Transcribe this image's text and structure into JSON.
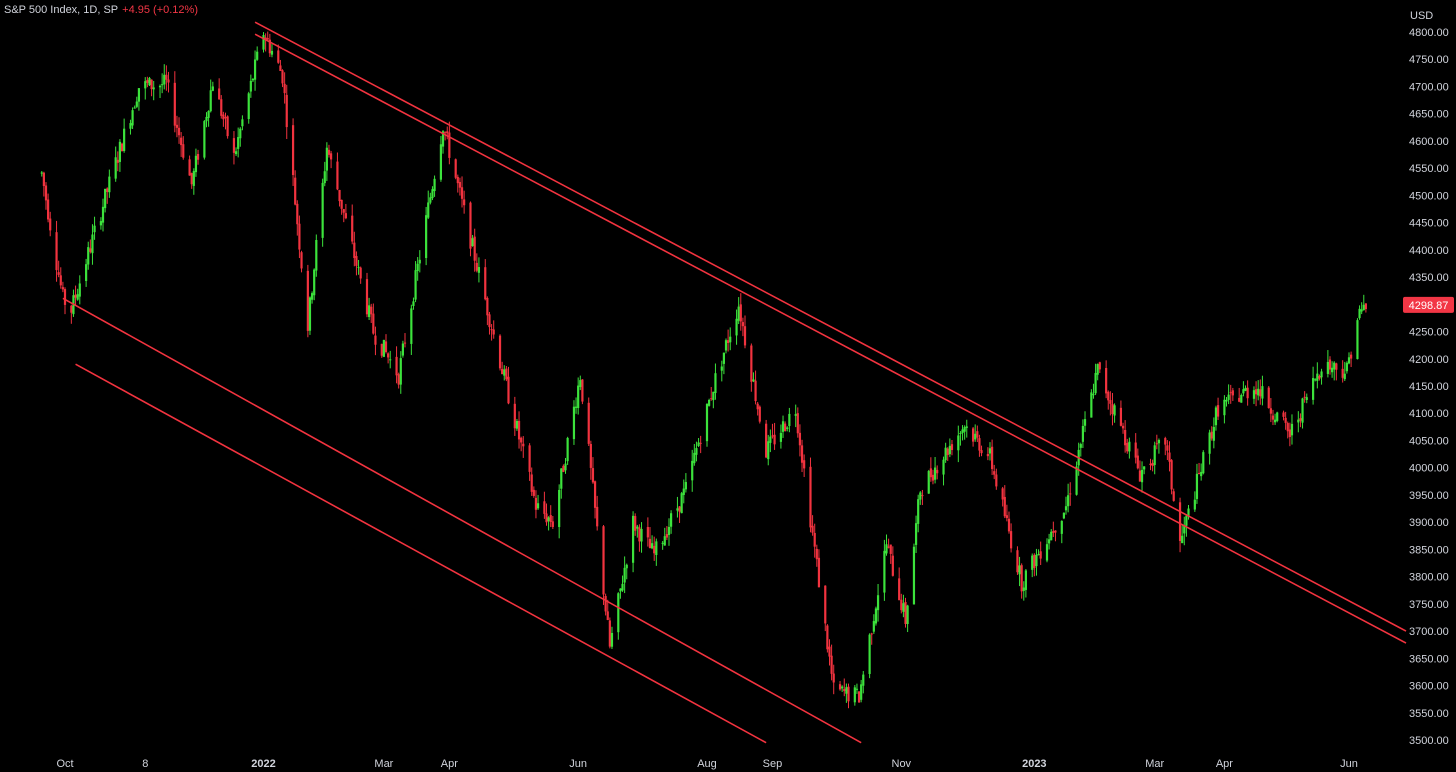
{
  "header": {
    "symbol": "S&P 500 Index, 1D, SP",
    "change": "+4.95 (+0.12%)"
  },
  "currency": "USD",
  "chart_data": {
    "type": "candlestick",
    "title": "S&P 500 Index, 1D, SP",
    "ylabel": "USD",
    "ylim": [
      3480,
      4830
    ],
    "y_ticks": [
      "4800.00",
      "4750.00",
      "4700.00",
      "4650.00",
      "4600.00",
      "4550.00",
      "4500.00",
      "4450.00",
      "4400.00",
      "4350.00",
      "4300.00",
      "4250.00",
      "4200.00",
      "4150.00",
      "4100.00",
      "4050.00",
      "4000.00",
      "3950.00",
      "3900.00",
      "3850.00",
      "3800.00",
      "3750.00",
      "3700.00",
      "3650.00",
      "3600.00",
      "3550.00",
      "3500.00"
    ],
    "x_ticks": [
      {
        "label": "Oct",
        "date": "2021-10-01",
        "bold": false
      },
      {
        "label": "8",
        "date": "2021-11-08",
        "bold": false
      },
      {
        "label": "2022",
        "date": "2022-01-03",
        "bold": true
      },
      {
        "label": "Mar",
        "date": "2022-03-01",
        "bold": false
      },
      {
        "label": "Apr",
        "date": "2022-04-01",
        "bold": false
      },
      {
        "label": "Jun",
        "date": "2022-06-01",
        "bold": false
      },
      {
        "label": "Aug",
        "date": "2022-08-01",
        "bold": false
      },
      {
        "label": "Sep",
        "date": "2022-09-01",
        "bold": false
      },
      {
        "label": "Nov",
        "date": "2022-11-01",
        "bold": false
      },
      {
        "label": "2023",
        "date": "2023-01-03",
        "bold": true
      },
      {
        "label": "Mar",
        "date": "2023-03-01",
        "bold": false
      },
      {
        "label": "Apr",
        "date": "2023-04-03",
        "bold": false
      },
      {
        "label": "Jun",
        "date": "2023-06-01",
        "bold": false
      }
    ],
    "last_price": "4298.87",
    "up_color": "#3ce33c",
    "down_color": "#f2333f",
    "trendline_color": "#f2333f",
    "grid": false,
    "trendlines": [
      {
        "name": "upper-channel-outer",
        "from": {
          "date": "2021-12-30",
          "price": 4818
        },
        "to": {
          "date": "2023-06-28",
          "price": 3700
        }
      },
      {
        "name": "upper-channel-inner",
        "from": {
          "date": "2021-12-30",
          "price": 4796
        },
        "to": {
          "date": "2023-06-28",
          "price": 3678
        }
      },
      {
        "name": "lower-channel",
        "from": {
          "date": "2021-09-30",
          "price": 4311
        },
        "to": {
          "date": "2022-10-13",
          "price": 3495
        }
      },
      {
        "name": "lower-parallel",
        "from": {
          "date": "2021-10-06",
          "price": 4190
        },
        "to": {
          "date": "2022-08-29",
          "price": 3495
        }
      }
    ],
    "key_points": [
      {
        "date": "2021-09-20",
        "close": 4540
      },
      {
        "date": "2021-09-30",
        "close": 4310
      },
      {
        "date": "2021-10-04",
        "close": 4290
      },
      {
        "date": "2021-10-18",
        "close": 4470
      },
      {
        "date": "2021-11-05",
        "close": 4700
      },
      {
        "date": "2021-11-18",
        "close": 4705
      },
      {
        "date": "2021-11-30",
        "close": 4520
      },
      {
        "date": "2021-12-10",
        "close": 4710
      },
      {
        "date": "2021-12-20",
        "close": 4570
      },
      {
        "date": "2022-01-03",
        "close": 4800
      },
      {
        "date": "2022-01-12",
        "close": 4720
      },
      {
        "date": "2022-01-24",
        "close": 4260
      },
      {
        "date": "2022-02-02",
        "close": 4590
      },
      {
        "date": "2022-02-24",
        "close": 4250
      },
      {
        "date": "2022-03-08",
        "close": 4170
      },
      {
        "date": "2022-03-29",
        "close": 4630
      },
      {
        "date": "2022-04-11",
        "close": 4420
      },
      {
        "date": "2022-04-26",
        "close": 4180
      },
      {
        "date": "2022-05-12",
        "close": 3930
      },
      {
        "date": "2022-05-20",
        "close": 3900
      },
      {
        "date": "2022-06-02",
        "close": 4170
      },
      {
        "date": "2022-06-16",
        "close": 3670
      },
      {
        "date": "2022-06-27",
        "close": 3900
      },
      {
        "date": "2022-07-07",
        "close": 3840
      },
      {
        "date": "2022-07-22",
        "close": 3960
      },
      {
        "date": "2022-08-04",
        "close": 4150
      },
      {
        "date": "2022-08-16",
        "close": 4300
      },
      {
        "date": "2022-08-29",
        "close": 4030
      },
      {
        "date": "2022-09-12",
        "close": 4110
      },
      {
        "date": "2022-09-30",
        "close": 3590
      },
      {
        "date": "2022-10-12",
        "close": 3580
      },
      {
        "date": "2022-10-25",
        "close": 3860
      },
      {
        "date": "2022-11-03",
        "close": 3720
      },
      {
        "date": "2022-11-10",
        "close": 3960
      },
      {
        "date": "2022-12-01",
        "close": 4080
      },
      {
        "date": "2022-12-13",
        "close": 4020
      },
      {
        "date": "2022-12-28",
        "close": 3790
      },
      {
        "date": "2023-01-18",
        "close": 3930
      },
      {
        "date": "2023-02-02",
        "close": 4180
      },
      {
        "date": "2023-02-22",
        "close": 3990
      },
      {
        "date": "2023-03-06",
        "close": 4050
      },
      {
        "date": "2023-03-13",
        "close": 3860
      },
      {
        "date": "2023-03-31",
        "close": 4110
      },
      {
        "date": "2023-04-18",
        "close": 4150
      },
      {
        "date": "2023-05-04",
        "close": 4060
      },
      {
        "date": "2023-05-19",
        "close": 4190
      },
      {
        "date": "2023-05-31",
        "close": 4180
      },
      {
        "date": "2023-06-05",
        "close": 4275
      },
      {
        "date": "2023-06-09",
        "close": 4299
      }
    ]
  }
}
